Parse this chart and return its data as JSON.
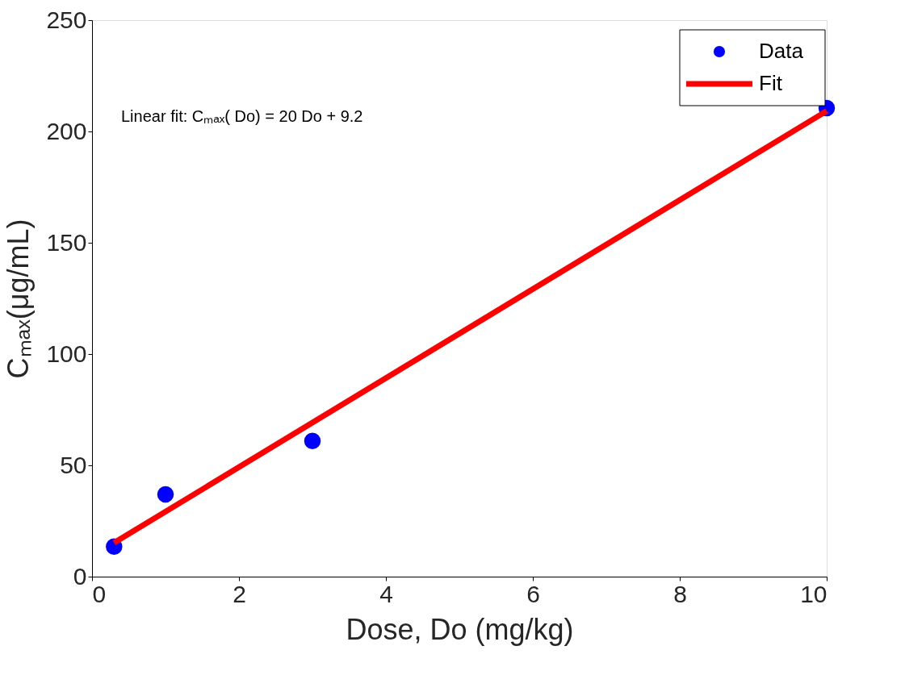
{
  "chart_data": {
    "type": "scatter",
    "xlabel": "Dose,  Do (mg/kg)",
    "ylabel": "Cₘₐₓ(μg/mL)",
    "series": [
      {
        "name": "Data",
        "color": "#0000ff",
        "x": [
          0.3,
          1,
          3,
          10
        ],
        "values": [
          13.5,
          37,
          61,
          210.5
        ],
        "marker": "circle"
      },
      {
        "name": "Fit",
        "type": "line",
        "color": "#ff0000",
        "x": [
          0.3,
          10
        ],
        "values": [
          15.2,
          209.2
        ],
        "marker": "none",
        "line_style": "solid"
      }
    ],
    "annotations": [
      "Linear fit: Cₘₐₓ( Do) = 20 Do + 9.2"
    ],
    "xlim": [
      0,
      10
    ],
    "xticks": [
      0,
      2,
      4,
      6,
      8,
      10
    ],
    "ylim": [
      0,
      250
    ],
    "yticks": [
      0,
      50,
      100,
      150,
      200,
      250
    ],
    "grid": false,
    "legend": "top right"
  }
}
